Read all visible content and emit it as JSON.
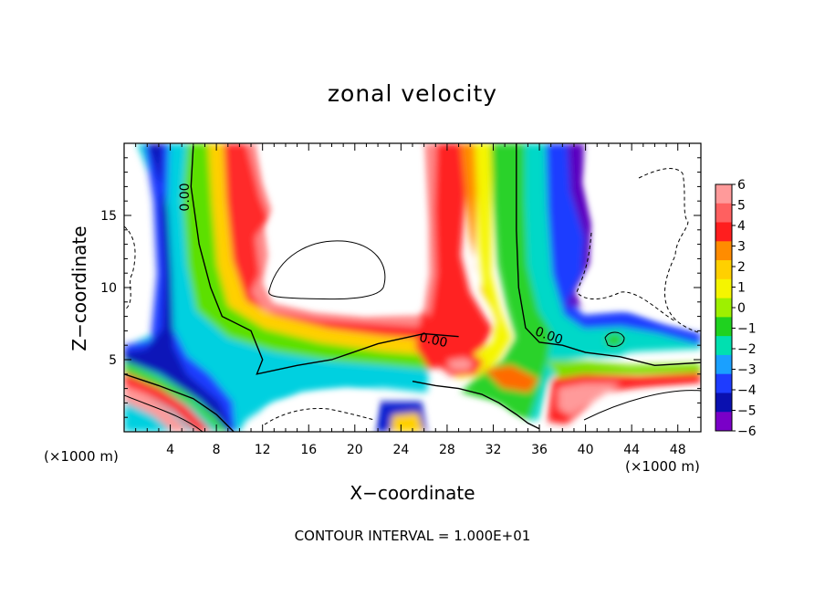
{
  "chart_data": {
    "type": "heatmap",
    "title": "zonal velocity",
    "xlabel": "X−coordinate",
    "ylabel": "Z−coordinate",
    "x_unit_label": "(×1000 m)",
    "footer": "CONTOUR INTERVAL = 1.000E+01",
    "xlim": [
      0,
      50
    ],
    "ylim": [
      0,
      20
    ],
    "x_ticks": [
      4,
      8,
      12,
      16,
      20,
      24,
      28,
      32,
      36,
      40,
      44,
      48
    ],
    "y_ticks": [
      5,
      10,
      15
    ],
    "colorbar": {
      "levels": [
        "6",
        "5",
        "4",
        "3",
        "2",
        "1",
        "0",
        "−1",
        "−2",
        "−3",
        "−4",
        "−5",
        "−6"
      ],
      "colors": [
        "#ff9a9a",
        "#ff6060",
        "#ff1e1e",
        "#ff8c00",
        "#ffd000",
        "#f5f500",
        "#9ef000",
        "#1fd21f",
        "#00e0b0",
        "#1aa0ff",
        "#1e3cff",
        "#0a10b0",
        "#7a00c8"
      ]
    },
    "contour_labels": [
      "0.00",
      "0.00",
      "0.00"
    ],
    "zero_contours": [
      [
        [
          6,
          19.8
        ],
        [
          5.8,
          17
        ],
        [
          6.5,
          13
        ],
        [
          7.5,
          10
        ],
        [
          8.5,
          8
        ],
        [
          11,
          7
        ],
        [
          12,
          5
        ],
        [
          11.5,
          4
        ],
        [
          15,
          4.6
        ],
        [
          18,
          5
        ],
        [
          22,
          6.1
        ],
        [
          26,
          6.8
        ],
        [
          29,
          6.6
        ]
      ],
      [
        [
          0,
          4
        ],
        [
          3,
          3.2
        ],
        [
          6,
          2.3
        ],
        [
          8,
          1.2
        ],
        [
          9.5,
          0
        ]
      ],
      [
        [
          25,
          3.5
        ],
        [
          27,
          3.2
        ],
        [
          29,
          3.0
        ],
        [
          31,
          2.6
        ],
        [
          32.5,
          2.0
        ],
        [
          34,
          1.2
        ],
        [
          35,
          0.6
        ],
        [
          36,
          0.2
        ]
      ],
      [
        [
          34,
          20
        ],
        [
          34,
          14
        ],
        [
          34.2,
          10
        ],
        [
          34.8,
          7.2
        ],
        [
          36,
          6.2
        ],
        [
          38,
          6
        ],
        [
          40,
          5.5
        ],
        [
          43,
          5.2
        ],
        [
          46,
          4.6
        ],
        [
          50,
          4.8
        ]
      ]
    ]
  }
}
